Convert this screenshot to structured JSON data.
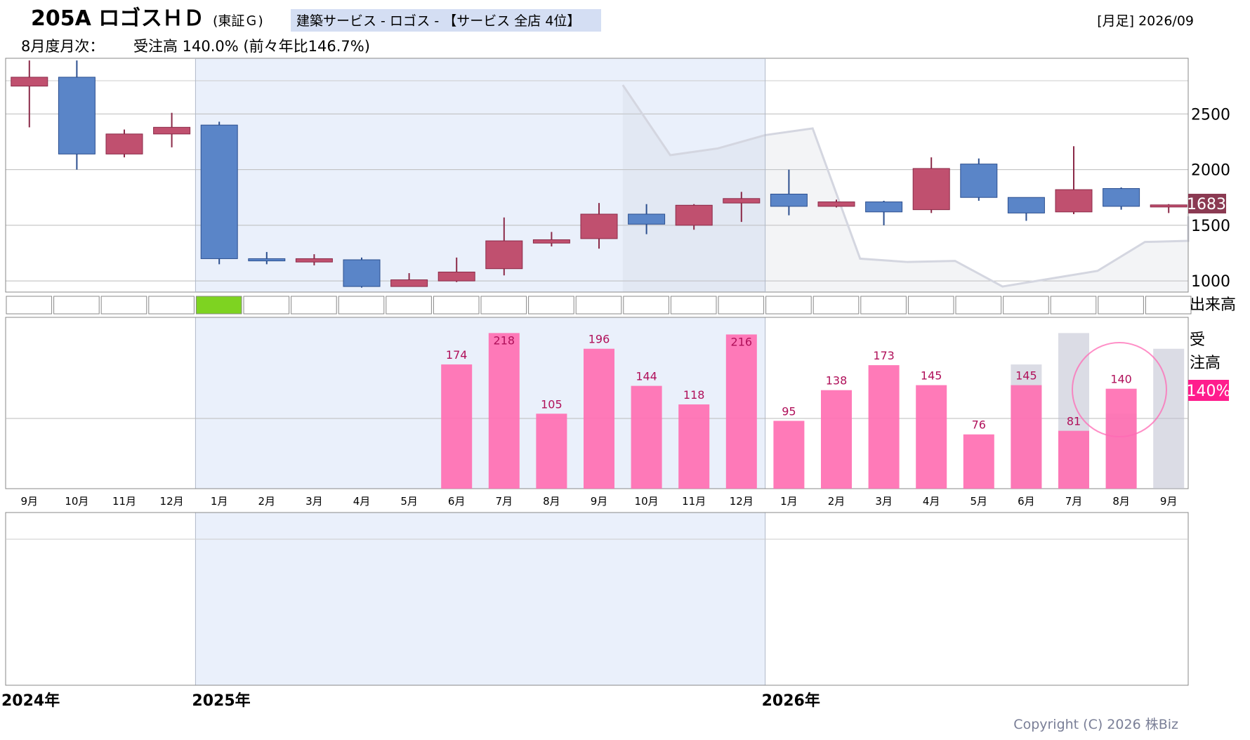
{
  "header": {
    "code_name": "205A ロゴスＨＤ",
    "market": "(東証Ｇ)",
    "sector": "建築サービス - ロゴス - 【サービス 全店 4位】",
    "period": "[月足] 2026/09",
    "monthly_label": "8月度月次：",
    "monthly_value": "受注高 140.0% (前々年比146.7%)"
  },
  "labels": {
    "volume": "出来高",
    "orders_line1": "受",
    "orders_line2": "注高",
    "orders_current": "140%",
    "current_price": "1683",
    "copyright": "Copyright (C) 2026 株Biz"
  },
  "colors": {
    "up": "#c0506f",
    "down": "#5a85c8",
    "bar": "#ff6fb2",
    "highlight_cell": "#7ed321",
    "price_tag": "#8b3a52",
    "orders_tag": "#ff1d8d",
    "shade": "#eaf0fb",
    "circle": "#ff69b4"
  },
  "chart_data": {
    "type": "candlestick",
    "months": [
      "9月",
      "10月",
      "11月",
      "12月",
      "1月",
      "2月",
      "3月",
      "4月",
      "5月",
      "6月",
      "7月",
      "8月",
      "9月",
      "10月",
      "11月",
      "12月",
      "1月",
      "2月",
      "3月",
      "4月",
      "5月",
      "6月",
      "7月",
      "8月",
      "9月"
    ],
    "years": [
      {
        "label": "2024年",
        "start_index": 0
      },
      {
        "label": "2025年",
        "start_index": 4
      },
      {
        "label": "2026年",
        "start_index": 16
      }
    ],
    "price_axis": {
      "ticks": [
        1000,
        1500,
        2000,
        2500
      ],
      "ylim": [
        900,
        3000
      ]
    },
    "candles": [
      {
        "o": 2750,
        "h": 2980,
        "l": 2380,
        "c": 2830
      },
      {
        "o": 2830,
        "h": 2980,
        "l": 2000,
        "c": 2140
      },
      {
        "o": 2140,
        "h": 2360,
        "l": 2110,
        "c": 2320
      },
      {
        "o": 2320,
        "h": 2510,
        "l": 2200,
        "c": 2380
      },
      {
        "o": 2400,
        "h": 2430,
        "l": 1150,
        "c": 1200
      },
      {
        "o": 1200,
        "h": 1260,
        "l": 1150,
        "c": 1180
      },
      {
        "o": 1170,
        "h": 1240,
        "l": 1140,
        "c": 1200
      },
      {
        "o": 1190,
        "h": 1210,
        "l": 940,
        "c": 950
      },
      {
        "o": 950,
        "h": 1070,
        "l": 950,
        "c": 1010
      },
      {
        "o": 1000,
        "h": 1210,
        "l": 990,
        "c": 1080
      },
      {
        "o": 1110,
        "h": 1570,
        "l": 1050,
        "c": 1360
      },
      {
        "o": 1340,
        "h": 1440,
        "l": 1310,
        "c": 1370
      },
      {
        "o": 1380,
        "h": 1700,
        "l": 1290,
        "c": 1600
      },
      {
        "o": 1600,
        "h": 1690,
        "l": 1420,
        "c": 1510
      },
      {
        "o": 1500,
        "h": 1690,
        "l": 1460,
        "c": 1680
      },
      {
        "o": 1700,
        "h": 1800,
        "l": 1530,
        "c": 1740
      },
      {
        "o": 1780,
        "h": 2000,
        "l": 1590,
        "c": 1670
      },
      {
        "o": 1670,
        "h": 1730,
        "l": 1660,
        "c": 1710
      },
      {
        "o": 1710,
        "h": 1720,
        "l": 1500,
        "c": 1620
      },
      {
        "o": 1640,
        "h": 2110,
        "l": 1610,
        "c": 2010
      },
      {
        "o": 2050,
        "h": 2100,
        "l": 1720,
        "c": 1750
      },
      {
        "o": 1750,
        "h": 1750,
        "l": 1540,
        "c": 1610
      },
      {
        "o": 1620,
        "h": 2210,
        "l": 1600,
        "c": 1820
      },
      {
        "o": 1830,
        "h": 1840,
        "l": 1640,
        "c": 1670
      },
      {
        "o": 1670,
        "h": 1690,
        "l": 1610,
        "c": 1683
      }
    ],
    "previous_line": [
      {
        "i": 13,
        "v": 2760
      },
      {
        "i": 14,
        "v": 2130
      },
      {
        "i": 15,
        "v": 2190
      },
      {
        "i": 16,
        "v": 2310
      },
      {
        "i": 17,
        "v": 2370
      },
      {
        "i": 18,
        "v": 1200
      },
      {
        "i": 19,
        "v": 1170
      },
      {
        "i": 20,
        "v": 1180
      },
      {
        "i": 21,
        "v": 950
      },
      {
        "i": 22,
        "v": 1020
      },
      {
        "i": 23,
        "v": 1090
      },
      {
        "i": 24,
        "v": 1350
      },
      {
        "i": 25,
        "v": 1360
      },
      {
        "i": 26,
        "v": 1580
      }
    ],
    "volume_highlight_index": 4,
    "orders": [
      {
        "i": 9,
        "v": 174
      },
      {
        "i": 10,
        "v": 218
      },
      {
        "i": 11,
        "v": 105
      },
      {
        "i": 12,
        "v": 196
      },
      {
        "i": 13,
        "v": 144
      },
      {
        "i": 14,
        "v": 118
      },
      {
        "i": 15,
        "v": 216
      },
      {
        "i": 16,
        "v": 95
      },
      {
        "i": 17,
        "v": 138
      },
      {
        "i": 18,
        "v": 173
      },
      {
        "i": 19,
        "v": 145
      },
      {
        "i": 20,
        "v": 76
      },
      {
        "i": 21,
        "v": 145
      },
      {
        "i": 22,
        "v": 81
      },
      {
        "i": 23,
        "v": 140
      }
    ],
    "orders_prior_year": [
      {
        "i": 21,
        "v": 174
      },
      {
        "i": 22,
        "v": 218
      },
      {
        "i": 23,
        "v": 105
      },
      {
        "i": 24,
        "v": 196
      }
    ],
    "orders_axis": {
      "ylim": [
        0,
        240
      ],
      "gridline": 100
    }
  }
}
